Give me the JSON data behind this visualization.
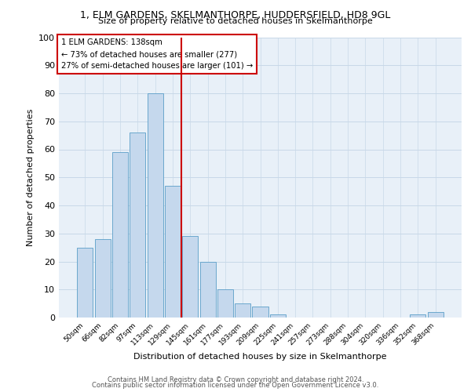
{
  "title_line1": "1, ELM GARDENS, SKELMANTHORPE, HUDDERSFIELD, HD8 9GL",
  "title_line2": "Size of property relative to detached houses in Skelmanthorpe",
  "xlabel": "Distribution of detached houses by size in Skelmanthorpe",
  "ylabel": "Number of detached properties",
  "categories": [
    "50sqm",
    "66sqm",
    "82sqm",
    "97sqm",
    "113sqm",
    "129sqm",
    "145sqm",
    "161sqm",
    "177sqm",
    "193sqm",
    "209sqm",
    "225sqm",
    "241sqm",
    "257sqm",
    "273sqm",
    "288sqm",
    "304sqm",
    "320sqm",
    "336sqm",
    "352sqm",
    "368sqm"
  ],
  "bar_values": [
    25,
    28,
    59,
    66,
    80,
    47,
    29,
    20,
    10,
    5,
    4,
    1,
    0,
    0,
    0,
    0,
    0,
    0,
    0,
    1,
    2
  ],
  "bar_color": "#c5d8ed",
  "bar_edge_color": "#5a9ec8",
  "vline_x": 5.5,
  "vline_color": "#cc0000",
  "annotation_text": "1 ELM GARDENS: 138sqm\n← 73% of detached houses are smaller (277)\n27% of semi-detached houses are larger (101) →",
  "annotation_box_color": "#ffffff",
  "annotation_box_edge": "#cc0000",
  "grid_color": "#c8d8e8",
  "background_color": "#e8f0f8",
  "ylim": [
    0,
    100
  ],
  "yticks": [
    0,
    10,
    20,
    30,
    40,
    50,
    60,
    70,
    80,
    90,
    100
  ],
  "footer_line1": "Contains HM Land Registry data © Crown copyright and database right 2024.",
  "footer_line2": "Contains public sector information licensed under the Open Government Licence v3.0."
}
